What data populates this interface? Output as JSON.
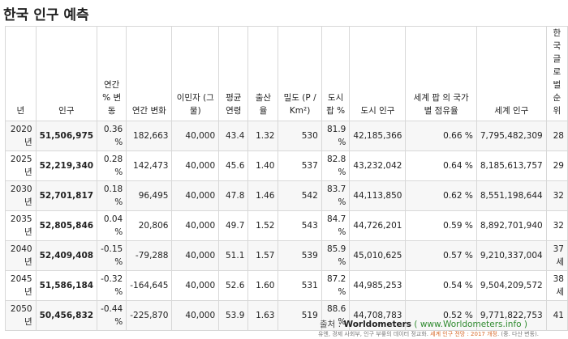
{
  "page_title": "한국 인구 예측",
  "table": {
    "headers": [
      "년",
      "인구",
      "연간 % 변동",
      "연간 변화",
      "이민자 (그물)",
      "평균 연령",
      "출산율",
      "밀도 (P / Km²)",
      "도시 팝 %",
      "도시 인구",
      "세계 팝 의 국가 별 점유율",
      "세계 인구",
      "한국 글로벌 순위"
    ],
    "rows": [
      [
        "2020 년",
        "51,506,975",
        "0.36 %",
        "182,663",
        "40,000",
        "43.4",
        "1.32",
        "530",
        "81.9 %",
        "42,185,366",
        "0.66 %",
        "7,795,482,309",
        "28"
      ],
      [
        "2025 년",
        "52,219,340",
        "0.28 %",
        "142,473",
        "40,000",
        "45.6",
        "1.40",
        "537",
        "82.8 %",
        "43,232,042",
        "0.64 %",
        "8,185,613,757",
        "29"
      ],
      [
        "2030 년",
        "52,701,817",
        "0.18 %",
        "96,495",
        "40,000",
        "47.8",
        "1.46",
        "542",
        "83.7 %",
        "44,113,850",
        "0.62 %",
        "8,551,198,644",
        "32"
      ],
      [
        "2035 년",
        "52,805,846",
        "0.04 %",
        "20,806",
        "40,000",
        "49.7",
        "1.52",
        "543",
        "84.7 %",
        "44,726,201",
        "0.59 %",
        "8,892,701,940",
        "32"
      ],
      [
        "2040 년",
        "52,409,408",
        "-0.15 %",
        "-79,288",
        "40,000",
        "51.1",
        "1.57",
        "539",
        "85.9 %",
        "45,010,625",
        "0.57 %",
        "9,210,337,004",
        "37 세"
      ],
      [
        "2045 년",
        "51,586,184",
        "-0.32 %",
        "-164,645",
        "40,000",
        "52.6",
        "1.60",
        "531",
        "87.2 %",
        "44,985,253",
        "0.54 %",
        "9,504,209,572",
        "38 세"
      ],
      [
        "2050 년",
        "50,456,832",
        "-0.44 %",
        "-225,870",
        "40,000",
        "53.9",
        "1.63",
        "519",
        "88.6 %",
        "44,708,783",
        "0.52 %",
        "9,771,822,753",
        "41"
      ]
    ]
  },
  "footer": {
    "source_label": "출처 :",
    "source_name": "Worldometers",
    "source_link": "( www.Worldometers.info )",
    "note_prefix": "유엔, 경제 사회부, 인구 부릏의 데이터 정교화.",
    "note_link": "세계 인구 전망 : 2017 개정",
    "note_suffix": ". (중. 다산 변동)."
  }
}
